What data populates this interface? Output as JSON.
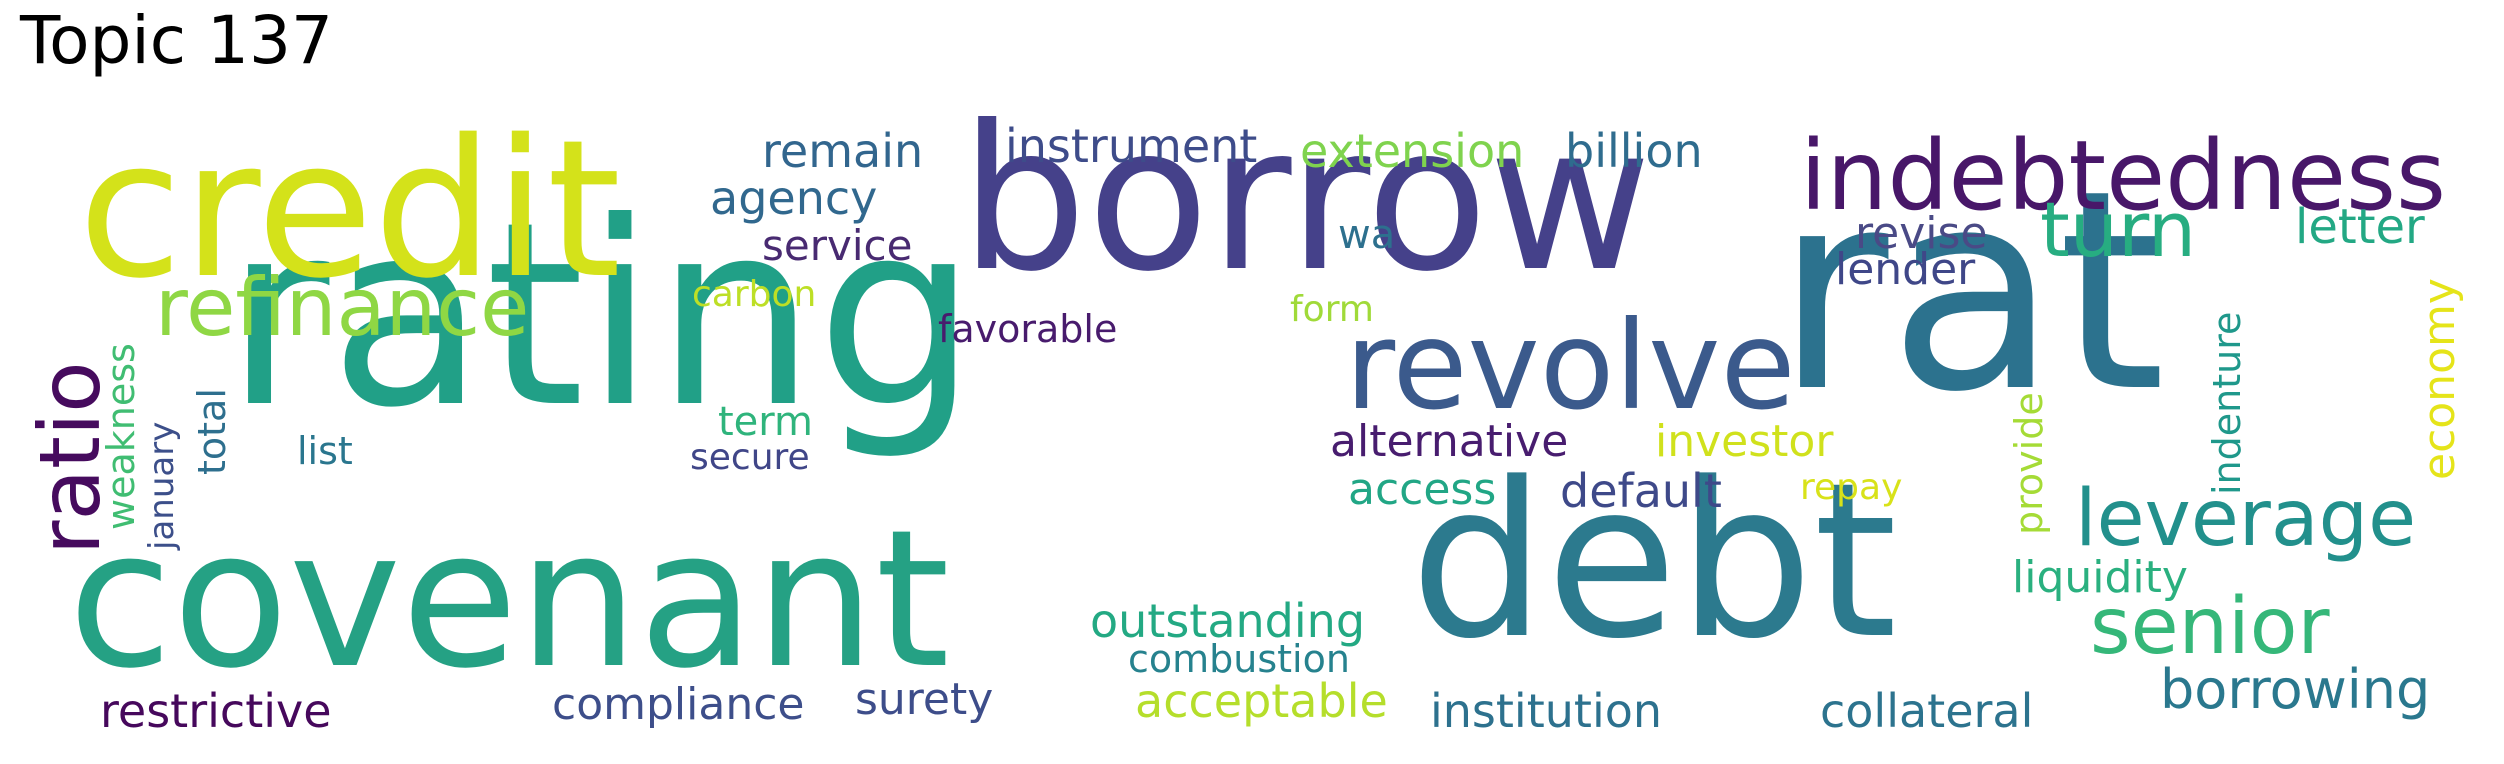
{
  "title": "Topic 137",
  "words": [
    {
      "text": "rat",
      "color": "#2c728e"
    },
    {
      "text": "rating",
      "color": "#21a087"
    },
    {
      "text": "debt",
      "color": "#2c7a8e"
    },
    {
      "text": "borrow",
      "color": "#45418a"
    },
    {
      "text": "credit",
      "color": "#d4e21a"
    },
    {
      "text": "covenant",
      "color": "#25a184"
    },
    {
      "text": "revolve",
      "color": "#3b5a8c"
    },
    {
      "text": "indebtedness",
      "color": "#481769"
    },
    {
      "text": "refinance",
      "color": "#8fd744"
    },
    {
      "text": "ratio",
      "color": "#460b5e"
    },
    {
      "text": "leverage",
      "color": "#22908c"
    },
    {
      "text": "senior",
      "color": "#35b779"
    },
    {
      "text": "turn",
      "color": "#27ad81"
    },
    {
      "text": "borrowing",
      "color": "#2a788e"
    },
    {
      "text": "remain",
      "color": "#32668e"
    },
    {
      "text": "instrument",
      "color": "#3e4c8a"
    },
    {
      "text": "extension",
      "color": "#7fd34e"
    },
    {
      "text": "billion",
      "color": "#2f6c8e"
    },
    {
      "text": "agency",
      "color": "#31688e"
    },
    {
      "text": "service",
      "color": "#482a71"
    },
    {
      "text": "revise",
      "color": "#4a4a86"
    },
    {
      "text": "letter",
      "color": "#23a884"
    },
    {
      "text": "lender",
      "color": "#3f4788"
    },
    {
      "text": "wa",
      "color": "#2d708e"
    },
    {
      "text": "carbon",
      "color": "#bddf26"
    },
    {
      "text": "form",
      "color": "#a0da39"
    },
    {
      "text": "favorable",
      "color": "#481b6d"
    },
    {
      "text": "weakness",
      "color": "#40bd72"
    },
    {
      "text": "total",
      "color": "#2e6f8e"
    },
    {
      "text": "january",
      "color": "#3c4f8a"
    },
    {
      "text": "list",
      "color": "#2a768e"
    },
    {
      "text": "term",
      "color": "#2fb47c"
    },
    {
      "text": "secure",
      "color": "#404688"
    },
    {
      "text": "alternative",
      "color": "#481d6f"
    },
    {
      "text": "investor",
      "color": "#d0e11c"
    },
    {
      "text": "access",
      "color": "#21a685"
    },
    {
      "text": "default",
      "color": "#3e4989"
    },
    {
      "text": "repay",
      "color": "#d8e219"
    },
    {
      "text": "provide",
      "color": "#a5db36"
    },
    {
      "text": "indenture",
      "color": "#1f988b"
    },
    {
      "text": "economy",
      "color": "#e5e419"
    },
    {
      "text": "liquidity",
      "color": "#2ab07f"
    },
    {
      "text": "outstanding",
      "color": "#23a983"
    },
    {
      "text": "combustion",
      "color": "#26828e"
    },
    {
      "text": "restrictive",
      "color": "#46085c"
    },
    {
      "text": "compliance",
      "color": "#3d4e8a"
    },
    {
      "text": "surety",
      "color": "#3d4d8a"
    },
    {
      "text": "acceptable",
      "color": "#b5de2b"
    },
    {
      "text": "institution",
      "color": "#2d718e"
    },
    {
      "text": "collateral",
      "color": "#2c738e"
    }
  ]
}
